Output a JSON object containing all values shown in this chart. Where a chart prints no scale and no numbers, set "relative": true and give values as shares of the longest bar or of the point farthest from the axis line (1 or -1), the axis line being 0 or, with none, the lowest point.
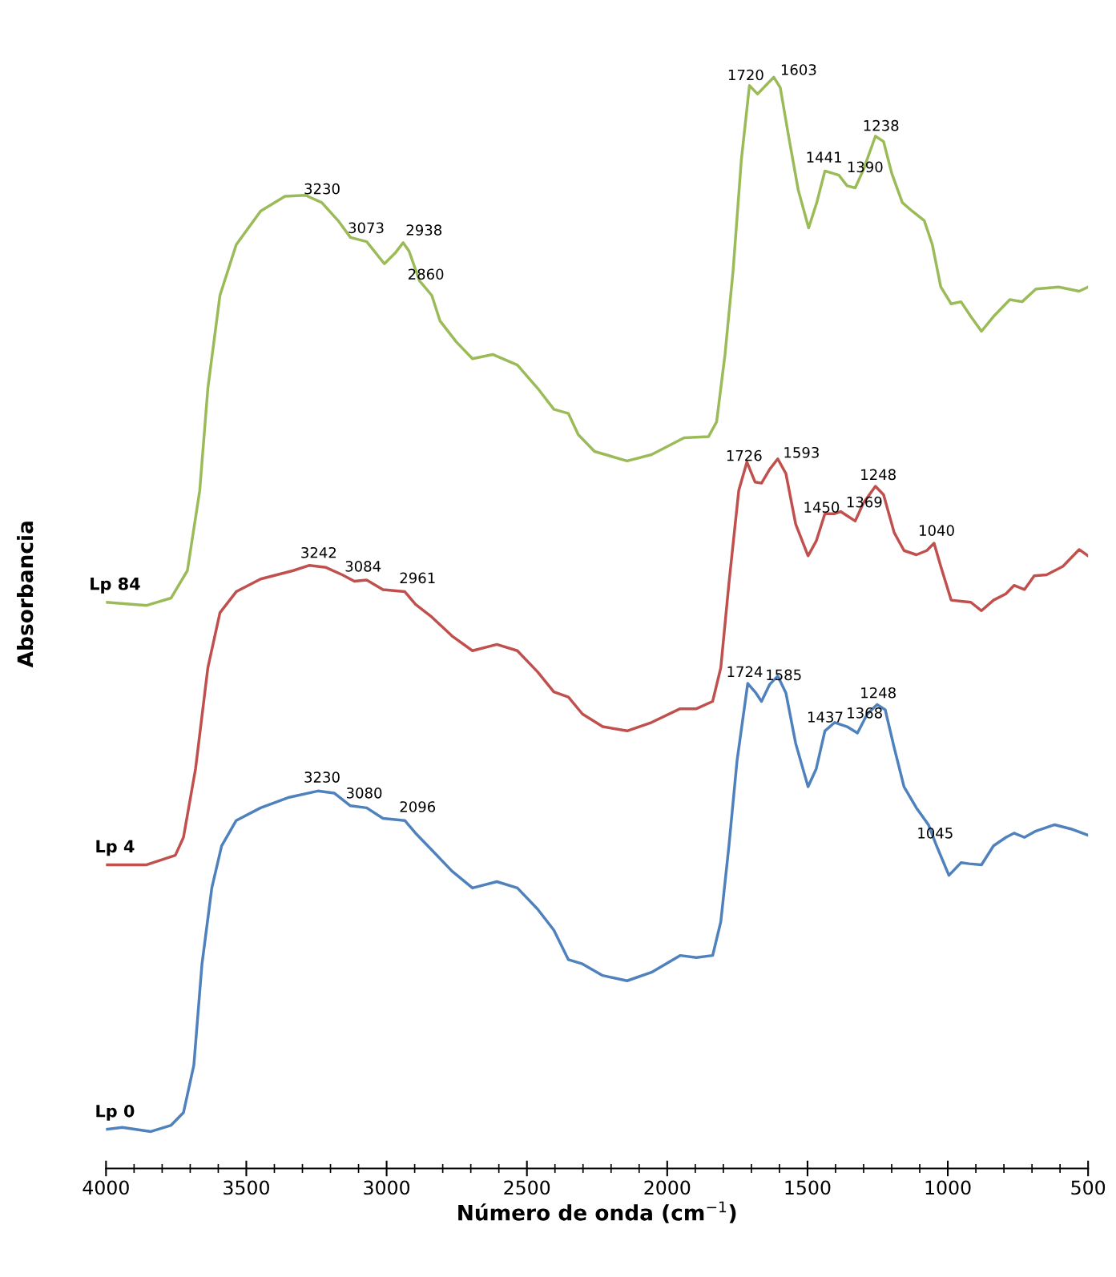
{
  "chart_data": {
    "type": "line",
    "relative": true,
    "xlabel": "Número de onda (cm$^{−1}$)",
    "ylabel": "Absorbancia",
    "xlim": [
      4000,
      500
    ],
    "xticks": [
      4000,
      3500,
      3000,
      2500,
      2000,
      1500,
      1000,
      500
    ],
    "grid": false,
    "legend": false,
    "marker": "none",
    "line_style": "solid",
    "series": [
      {
        "name": "Lp 84",
        "color": "#9bbb59",
        "x": [
          4000,
          3855,
          3768,
          3710,
          3666,
          3637,
          3594,
          3536,
          3449,
          3362,
          3289,
          3231,
          3173,
          3129,
          3071,
          3008,
          2970,
          2941,
          2920,
          2883,
          2839,
          2810,
          2752,
          2694,
          2622,
          2534,
          2462,
          2404,
          2352,
          2317,
          2259,
          2143,
          2056,
          1940,
          1853,
          1824,
          1794,
          1765,
          1736,
          1707,
          1678,
          1649,
          1620,
          1597,
          1568,
          1533,
          1496,
          1467,
          1438,
          1388,
          1359,
          1330,
          1301,
          1258,
          1229,
          1200,
          1162,
          1127,
          1084,
          1055,
          1025,
          988,
          953,
          918,
          880,
          837,
          779,
          735,
          686,
          605,
          532,
          500
        ],
        "values": [
          0.502,
          0.499,
          0.506,
          0.532,
          0.608,
          0.705,
          0.793,
          0.841,
          0.873,
          0.887,
          0.888,
          0.881,
          0.864,
          0.848,
          0.844,
          0.823,
          0.833,
          0.843,
          0.835,
          0.807,
          0.793,
          0.769,
          0.749,
          0.733,
          0.737,
          0.727,
          0.705,
          0.685,
          0.681,
          0.661,
          0.645,
          0.636,
          0.642,
          0.658,
          0.659,
          0.673,
          0.737,
          0.817,
          0.921,
          0.992,
          0.984,
          0.992,
          1.0,
          0.99,
          0.945,
          0.893,
          0.857,
          0.881,
          0.911,
          0.907,
          0.897,
          0.895,
          0.912,
          0.944,
          0.939,
          0.909,
          0.881,
          0.873,
          0.864,
          0.841,
          0.801,
          0.785,
          0.787,
          0.773,
          0.759,
          0.773,
          0.789,
          0.787,
          0.799,
          0.801,
          0.797,
          0.801
        ]
      },
      {
        "name": "Lp 4",
        "color": "#c0504d",
        "x": [
          4000,
          3855,
          3753,
          3724,
          3681,
          3637,
          3594,
          3536,
          3449,
          3333,
          3275,
          3216,
          3158,
          3115,
          3071,
          3013,
          2935,
          2897,
          2839,
          2767,
          2694,
          2607,
          2534,
          2462,
          2404,
          2352,
          2302,
          2230,
          2143,
          2056,
          1954,
          1896,
          1838,
          1809,
          1780,
          1745,
          1716,
          1687,
          1664,
          1635,
          1606,
          1577,
          1542,
          1498,
          1469,
          1438,
          1403,
          1382,
          1359,
          1330,
          1301,
          1258,
          1229,
          1191,
          1156,
          1112,
          1075,
          1049,
          1025,
          988,
          953,
          918,
          880,
          837,
          793,
          764,
          727,
          692,
          648,
          590,
          532,
          500
        ],
        "values": [
          0.253,
          0.253,
          0.262,
          0.279,
          0.344,
          0.44,
          0.492,
          0.512,
          0.524,
          0.532,
          0.537,
          0.535,
          0.528,
          0.522,
          0.523,
          0.514,
          0.512,
          0.5,
          0.488,
          0.47,
          0.456,
          0.462,
          0.456,
          0.436,
          0.417,
          0.412,
          0.396,
          0.384,
          0.38,
          0.388,
          0.401,
          0.401,
          0.408,
          0.44,
          0.52,
          0.608,
          0.635,
          0.616,
          0.615,
          0.628,
          0.638,
          0.624,
          0.576,
          0.546,
          0.56,
          0.586,
          0.586,
          0.588,
          0.584,
          0.579,
          0.596,
          0.612,
          0.604,
          0.568,
          0.551,
          0.547,
          0.551,
          0.558,
          0.536,
          0.504,
          0.503,
          0.502,
          0.494,
          0.504,
          0.51,
          0.518,
          0.514,
          0.527,
          0.528,
          0.536,
          0.552,
          0.546
        ]
      },
      {
        "name": "Lp 0",
        "color": "#4f81bd",
        "x": [
          4000,
          3942,
          3840,
          3768,
          3724,
          3687,
          3658,
          3623,
          3588,
          3536,
          3449,
          3347,
          3245,
          3187,
          3129,
          3071,
          3013,
          2935,
          2897,
          2839,
          2767,
          2694,
          2607,
          2534,
          2462,
          2404,
          2352,
          2302,
          2230,
          2143,
          2056,
          1954,
          1896,
          1838,
          1809,
          1780,
          1751,
          1713,
          1684,
          1664,
          1635,
          1606,
          1577,
          1542,
          1498,
          1469,
          1438,
          1403,
          1359,
          1322,
          1287,
          1252,
          1223,
          1191,
          1156,
          1112,
          1069,
          1040,
          996,
          953,
          924,
          880,
          837,
          793,
          764,
          727,
          686,
          619,
          561,
          500
        ],
        "values": [
          0.002,
          0.004,
          0.0,
          0.006,
          0.018,
          0.063,
          0.159,
          0.231,
          0.271,
          0.295,
          0.307,
          0.317,
          0.323,
          0.321,
          0.309,
          0.307,
          0.297,
          0.295,
          0.283,
          0.267,
          0.247,
          0.231,
          0.237,
          0.231,
          0.211,
          0.191,
          0.163,
          0.159,
          0.148,
          0.143,
          0.151,
          0.167,
          0.165,
          0.167,
          0.199,
          0.271,
          0.352,
          0.425,
          0.416,
          0.408,
          0.424,
          0.432,
          0.416,
          0.368,
          0.327,
          0.344,
          0.38,
          0.388,
          0.384,
          0.378,
          0.396,
          0.405,
          0.4,
          0.364,
          0.327,
          0.307,
          0.291,
          0.271,
          0.243,
          0.255,
          0.254,
          0.253,
          0.271,
          0.279,
          0.283,
          0.279,
          0.285,
          0.291,
          0.287,
          0.281
        ]
      }
    ],
    "annotations": [
      {
        "text": "3230",
        "x": 3230,
        "y": 0.881
      },
      {
        "text": "3073",
        "x": 3073,
        "y": 0.844
      },
      {
        "text": "2938",
        "x": 2938,
        "y": 0.843
      },
      {
        "text": "2860",
        "x": 2860,
        "y": 0.8
      },
      {
        "text": "1720",
        "x": 1720,
        "y": 0.989
      },
      {
        "text": "1603",
        "x": 1603,
        "y": 0.995
      },
      {
        "text": "1441",
        "x": 1441,
        "y": 0.911
      },
      {
        "text": "1390",
        "x": 1390,
        "y": 0.907
      },
      {
        "text": "1238",
        "x": 1238,
        "y": 0.941
      },
      {
        "text": "3242",
        "x": 3242,
        "y": 0.536
      },
      {
        "text": "3084",
        "x": 3084,
        "y": 0.523
      },
      {
        "text": "2961",
        "x": 2961,
        "y": 0.513
      },
      {
        "text": "1726",
        "x": 1726,
        "y": 0.628
      },
      {
        "text": "1593",
        "x": 1593,
        "y": 0.632
      },
      {
        "text": "1450",
        "x": 1450,
        "y": 0.579
      },
      {
        "text": "1369",
        "x": 1369,
        "y": 0.585
      },
      {
        "text": "1248",
        "x": 1248,
        "y": 0.61
      },
      {
        "text": "1040",
        "x": 1040,
        "y": 0.557
      },
      {
        "text": "3230",
        "x": 3230,
        "y": 0.323
      },
      {
        "text": "3080",
        "x": 3080,
        "y": 0.308
      },
      {
        "text": "2096",
        "x": 2961,
        "y": 0.296
      },
      {
        "text": "1724",
        "x": 1724,
        "y": 0.423
      },
      {
        "text": "1585",
        "x": 1585,
        "y": 0.42
      },
      {
        "text": "1437",
        "x": 1437,
        "y": 0.38
      },
      {
        "text": "1368",
        "x": 1368,
        "y": 0.385
      },
      {
        "text": "1248",
        "x": 1248,
        "y": 0.403
      },
      {
        "text": "1045",
        "x": 1045,
        "y": 0.27
      }
    ]
  }
}
